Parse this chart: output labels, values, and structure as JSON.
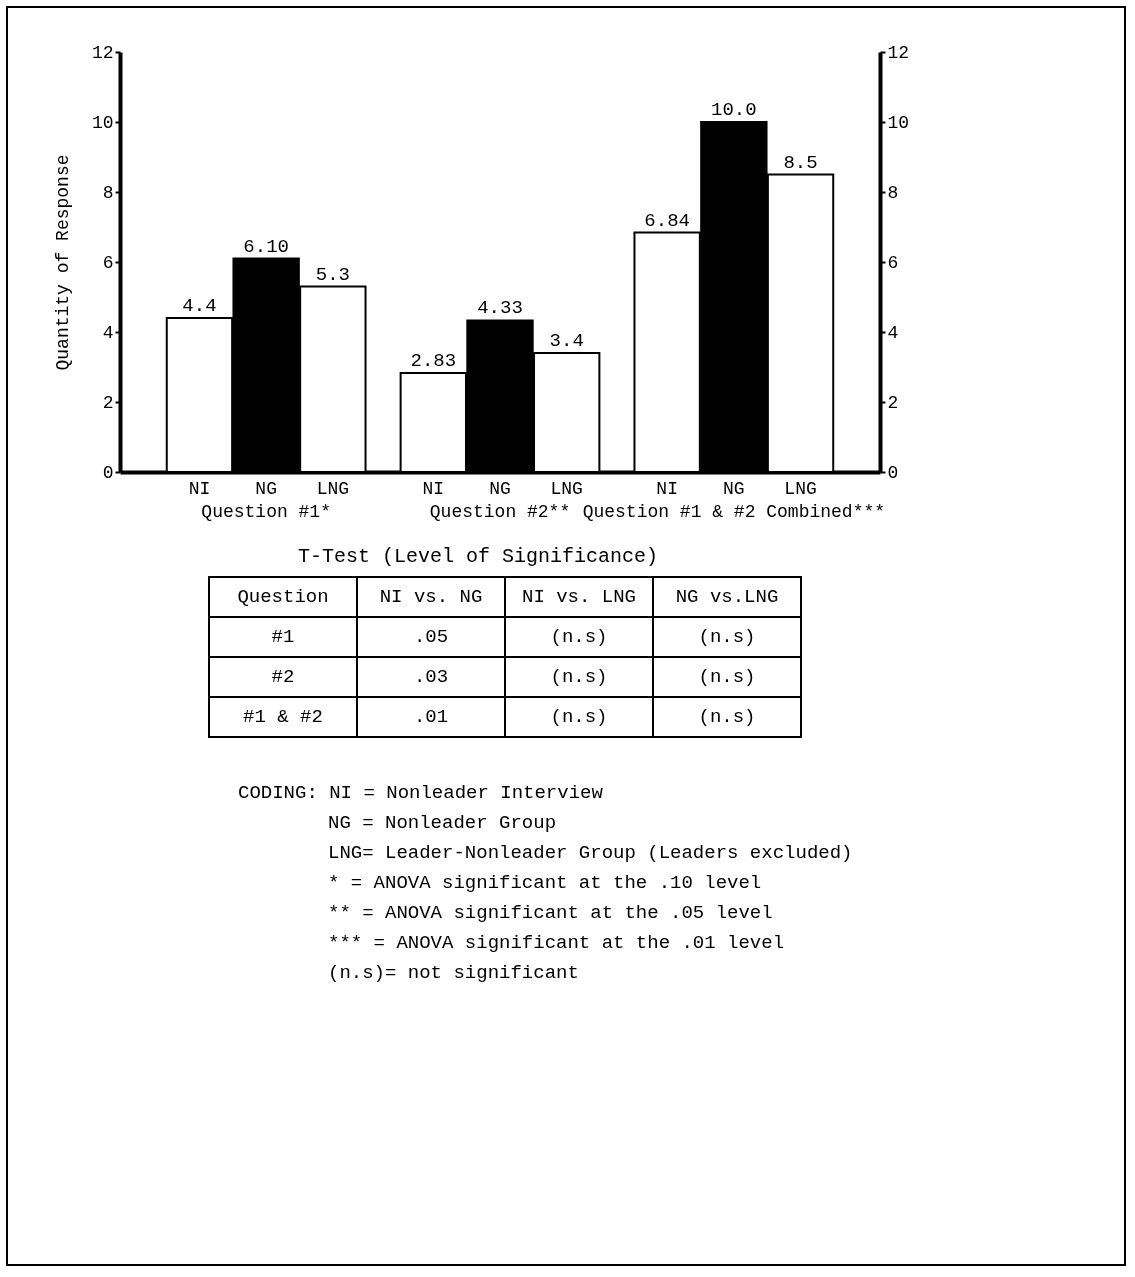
{
  "chart_data": {
    "type": "bar",
    "ylabel": "Quantity of Response",
    "categories": [
      "Question #1*",
      "Question #2**",
      "Question #1 & #2 Combined***"
    ],
    "series": [
      {
        "name": "NI",
        "color": "#ffffff",
        "values": [
          4.4,
          2.83,
          6.84
        ],
        "value_labels": [
          "4.4",
          "2.83",
          "6.84"
        ]
      },
      {
        "name": "NG",
        "color": "#000000",
        "values": [
          6.1,
          4.33,
          10.0
        ],
        "value_labels": [
          "6.10",
          "4.33",
          "10.0"
        ]
      },
      {
        "name": "LNG",
        "color": "#ffffff",
        "values": [
          5.3,
          3.4,
          8.5
        ],
        "value_labels": [
          "5.3",
          "3.4",
          "8.5"
        ]
      }
    ],
    "ylim": [
      0,
      12
    ],
    "yticks": [
      0,
      2,
      4,
      6,
      8,
      10,
      12
    ],
    "y2lim": [
      0,
      12
    ],
    "y2ticks": [
      0,
      2,
      4,
      6,
      8,
      10,
      12
    ],
    "grid": false,
    "legend": false,
    "annotations": [
      "T-Test (Level of Significance)",
      "Question",
      "NI vs. NG",
      "NI vs. LNG",
      "NG vs.LNG",
      "#1",
      ".05",
      "(n.s)",
      "(n.s)",
      "#2",
      ".03",
      "(n.s)",
      "(n.s)",
      "#1 & #2",
      ".01",
      "(n.s)",
      "(n.s)",
      "CODING: NI = Nonleader Interview",
      "NG = Nonleader Group",
      "LNG= Leader-Nonleader Group (Leaders excluded)",
      "* = ANOVA significant at the .10 level",
      "** = ANOVA significant at the .05 level",
      "*** = ANOVA significant at the .01 level",
      "(n.s)= not significant"
    ]
  }
}
